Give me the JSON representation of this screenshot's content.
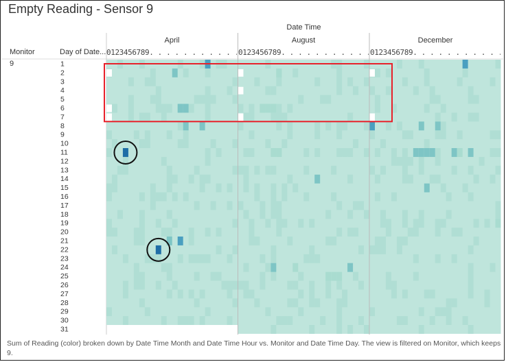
{
  "title": "Empty Reading - Sensor 9",
  "column_header": "Date Time",
  "row_headers": {
    "monitor": "Monitor",
    "day": "Day of Date..."
  },
  "monitor_value": "9",
  "hour_strip": "0123456789. . . . . . . . . . . . . .",
  "caption": "Sum of Reading (color) broken down by Date Time Month and Date Time Hour vs. Monitor and Date Time Day. The view is filtered on Monitor, which keeps 9.",
  "colors": {
    "base": "#bfe5dc",
    "low": "#a9dcd0",
    "mid": "#7ec5c5",
    "high": "#4a9fc0",
    "max": "#1f6ea6",
    "empty": "#ffffff",
    "highlight_box": "#e8202a",
    "circle": "#111111"
  },
  "chart_data": {
    "type": "heatmap",
    "title": "Empty Reading - Sensor 9",
    "x_header": "Date Time",
    "months": [
      "April",
      "August",
      "December"
    ],
    "hours_per_month": 24,
    "days": [
      1,
      2,
      3,
      4,
      5,
      6,
      7,
      8,
      9,
      10,
      11,
      12,
      13,
      14,
      15,
      16,
      17,
      18,
      19,
      20,
      21,
      22,
      23,
      24,
      25,
      26,
      27,
      28,
      29,
      30,
      31
    ],
    "days_in_month": {
      "April": 30,
      "August": 31,
      "December": 31
    },
    "cells": [
      {
        "month": "April",
        "day": 1,
        "hour": 18,
        "v": 3
      },
      {
        "month": "April",
        "day": 2,
        "hour": 12,
        "v": 2
      },
      {
        "month": "April",
        "day": 6,
        "hour": 13,
        "v": 2
      },
      {
        "month": "April",
        "day": 6,
        "hour": 14,
        "v": 2
      },
      {
        "month": "April",
        "day": 8,
        "hour": 14,
        "v": 2
      },
      {
        "month": "April",
        "day": 8,
        "hour": 17,
        "v": 2
      },
      {
        "month": "April",
        "day": 11,
        "hour": 3,
        "v": 4
      },
      {
        "month": "April",
        "day": 21,
        "hour": 11,
        "v": 2
      },
      {
        "month": "April",
        "day": 21,
        "hour": 13,
        "v": 3
      },
      {
        "month": "April",
        "day": 22,
        "hour": 9,
        "v": 4
      },
      {
        "month": "August",
        "day": 2,
        "hour": 7,
        "v": 1
      },
      {
        "month": "August",
        "day": 6,
        "hour": 4,
        "v": 1
      },
      {
        "month": "August",
        "day": 6,
        "hour": 5,
        "v": 1
      },
      {
        "month": "August",
        "day": 6,
        "hour": 6,
        "v": 1
      },
      {
        "month": "August",
        "day": 11,
        "hour": 6,
        "v": 1
      },
      {
        "month": "August",
        "day": 11,
        "hour": 7,
        "v": 1
      },
      {
        "month": "August",
        "day": 14,
        "hour": 14,
        "v": 2
      },
      {
        "month": "August",
        "day": 24,
        "hour": 6,
        "v": 2
      },
      {
        "month": "August",
        "day": 24,
        "hour": 10,
        "v": 1
      },
      {
        "month": "August",
        "day": 24,
        "hour": 20,
        "v": 2
      },
      {
        "month": "August",
        "day": 25,
        "hour": 16,
        "v": 1
      },
      {
        "month": "August",
        "day": 25,
        "hour": 17,
        "v": 1
      },
      {
        "month": "August",
        "day": 25,
        "hour": 18,
        "v": 1
      },
      {
        "month": "December",
        "day": 1,
        "hour": 17,
        "v": 3
      },
      {
        "month": "December",
        "day": 8,
        "hour": 0,
        "v": 3
      },
      {
        "month": "December",
        "day": 8,
        "hour": 9,
        "v": 2
      },
      {
        "month": "December",
        "day": 8,
        "hour": 12,
        "v": 2
      },
      {
        "month": "December",
        "day": 11,
        "hour": 8,
        "v": 2
      },
      {
        "month": "December",
        "day": 11,
        "hour": 9,
        "v": 2
      },
      {
        "month": "December",
        "day": 11,
        "hour": 10,
        "v": 2
      },
      {
        "month": "December",
        "day": 11,
        "hour": 11,
        "v": 2
      },
      {
        "month": "December",
        "day": 11,
        "hour": 15,
        "v": 2
      },
      {
        "month": "December",
        "day": 11,
        "hour": 16,
        "v": 1
      },
      {
        "month": "December",
        "day": 11,
        "hour": 18,
        "v": 2
      },
      {
        "month": "December",
        "day": 15,
        "hour": 10,
        "v": 2
      },
      {
        "month": "December",
        "day": 19,
        "hour": 23,
        "v": 1
      }
    ],
    "empty_cells": [
      {
        "month": "April",
        "day": 2,
        "hour": 0
      },
      {
        "month": "April",
        "day": 6,
        "hour": 0
      },
      {
        "month": "April",
        "day": 7,
        "hour": 0
      },
      {
        "month": "August",
        "day": 2,
        "hour": 0
      },
      {
        "month": "August",
        "day": 4,
        "hour": 0
      },
      {
        "month": "August",
        "day": 7,
        "hour": 0
      },
      {
        "month": "December",
        "day": 2,
        "hour": 0
      },
      {
        "month": "December",
        "day": 7,
        "hour": 0
      }
    ],
    "annotations": [
      {
        "type": "rectangle",
        "months": [
          "April",
          "August",
          "December"
        ],
        "day_range": [
          1,
          7
        ]
      },
      {
        "type": "circle",
        "month": "April",
        "day": 11,
        "hour": 3
      },
      {
        "type": "circle",
        "month": "April",
        "day": 22,
        "hour": 9
      }
    ]
  }
}
